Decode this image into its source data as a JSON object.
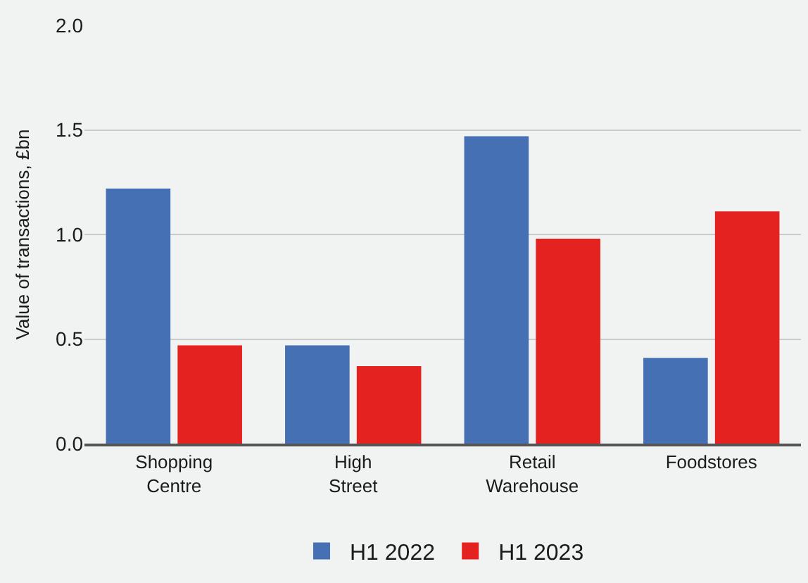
{
  "chart_data": {
    "type": "bar",
    "ylabel": "Value of transactions, £bn",
    "categories": [
      "Shopping\nCentre",
      "High\nStreet",
      "Retail\nWarehouse",
      "Foodstores"
    ],
    "series": [
      {
        "name": "H1 2022",
        "color": "#4670b4",
        "values": [
          1.22,
          0.47,
          1.47,
          0.41
        ]
      },
      {
        "name": "H1 2023",
        "color": "#e42320",
        "values": [
          0.47,
          0.37,
          0.98,
          1.11
        ]
      }
    ],
    "ylim": [
      0,
      2.0
    ],
    "yticks": [
      {
        "value": 0,
        "label": "0.0"
      },
      {
        "value": 0.5,
        "label": "0.5"
      },
      {
        "value": 1,
        "label": "1.0"
      },
      {
        "value": 1.5,
        "label": "1.5"
      },
      {
        "value": 2,
        "label": "2.0"
      }
    ],
    "grid": "y",
    "legend": "bottom"
  }
}
